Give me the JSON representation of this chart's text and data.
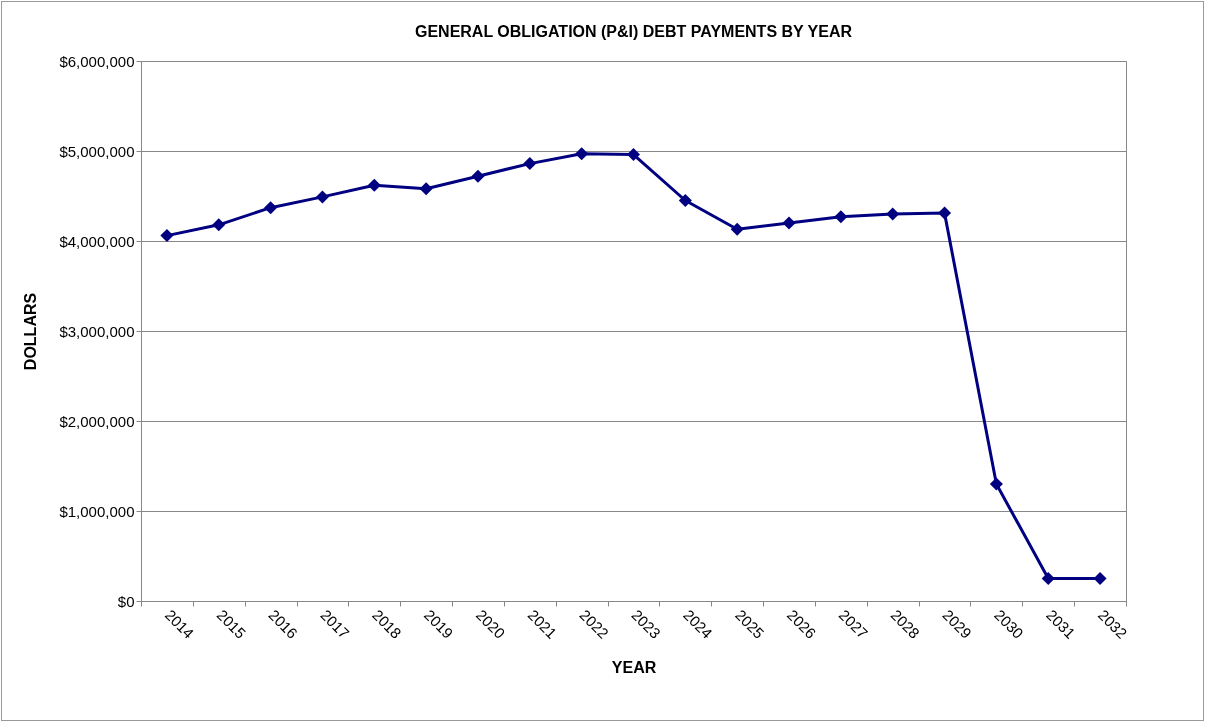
{
  "chart_data": {
    "type": "line",
    "title": "GENERAL OBLIGATION (P&I) DEBT PAYMENTS BY YEAR",
    "xlabel": "YEAR",
    "ylabel": "DOLLARS",
    "categories": [
      "2014",
      "2015",
      "2016",
      "2017",
      "2018",
      "2019",
      "2020",
      "2021",
      "2022",
      "2023",
      "2024",
      "2025",
      "2026",
      "2027",
      "2028",
      "2029",
      "2030",
      "2031",
      "2032"
    ],
    "series": [
      {
        "color": "#000080",
        "values": [
          4060000,
          4180000,
          4370000,
          4490000,
          4620000,
          4580000,
          4720000,
          4860000,
          4970000,
          4960000,
          4450000,
          4130000,
          4200000,
          4270000,
          4300000,
          4310000,
          1300000,
          250000,
          250000
        ]
      }
    ],
    "ylim": [
      0,
      6000000
    ],
    "yticks": [
      {
        "value": 0,
        "label": "$0"
      },
      {
        "value": 1000000,
        "label": "$1,000,000"
      },
      {
        "value": 2000000,
        "label": "$2,000,000"
      },
      {
        "value": 3000000,
        "label": "$3,000,000"
      },
      {
        "value": 4000000,
        "label": "$4,000,000"
      },
      {
        "value": 5000000,
        "label": "$5,000,000"
      },
      {
        "value": 6000000,
        "label": "$6,000,000"
      }
    ],
    "grid": "y",
    "marker": "diamond",
    "line_style": "solid"
  }
}
